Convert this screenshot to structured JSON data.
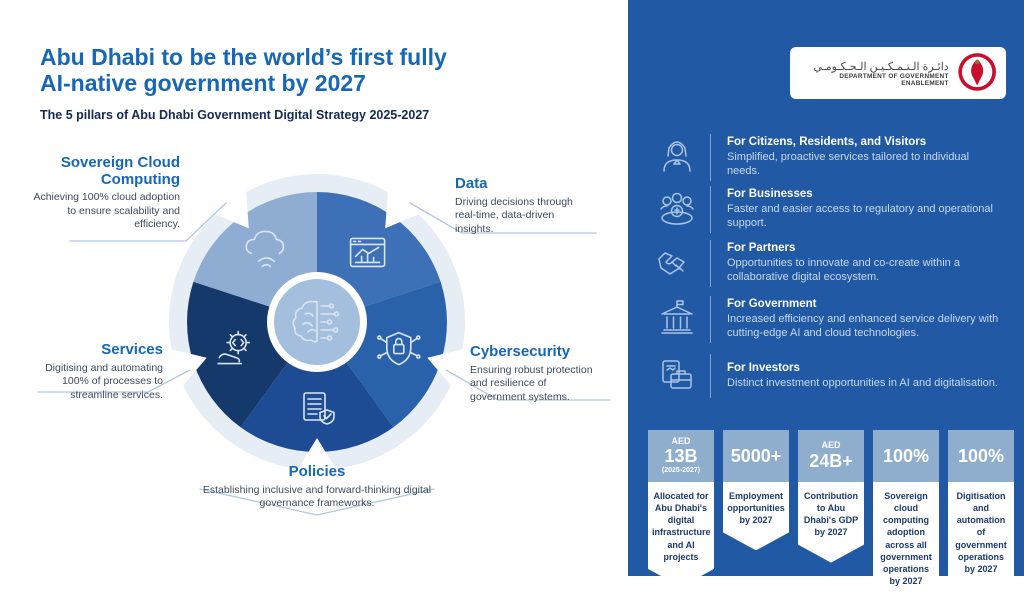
{
  "header": {
    "title_line1": "Abu Dhabi to be the world’s first fully",
    "title_line2": "AI-native government by 2027",
    "subtitle": "The 5 pillars of Abu Dhabi Government Digital Strategy 2025-2027"
  },
  "pillars": [
    {
      "id": "data",
      "name": "Data",
      "description": "Driving decisions through real-time, data-driven insights.",
      "color": "#3D70B6",
      "icon": "analytics-chart-icon"
    },
    {
      "id": "cybersecurity",
      "name": "Cybersecurity",
      "description": "Ensuring robust protection and resilience of government systems.",
      "color": "#2A61AB",
      "icon": "shield-lock-icon"
    },
    {
      "id": "policies",
      "name": "Policies",
      "description": "Establishing inclusive and forward-thinking digital governance frameworks.",
      "color": "#1D4C94",
      "icon": "policy-document-icon"
    },
    {
      "id": "services",
      "name": "Services",
      "description": "Digitising and automating 100% of processes to streamline services.",
      "color": "#16396B",
      "icon": "hand-gear-icon"
    },
    {
      "id": "cloud",
      "name": "Sovereign Cloud Computing",
      "description": "Achieving 100% cloud adoption to ensure scalability and efficiency.",
      "color": "#8FACD2",
      "icon": "cloud-icon"
    }
  ],
  "logo": {
    "arabic": "دائـرة الـتـمـكـيـن الـحـكـومـي",
    "english": "DEPARTMENT OF GOVERNMENT ENABLEMENT"
  },
  "audiences": [
    {
      "title": "For Citizens, Residents, and Visitors",
      "description": "Simplified, proactive services tailored to individual needs.",
      "icon": "citizen-icon"
    },
    {
      "title": "For Businesses",
      "description": "Faster and easier access to regulatory and operational support.",
      "icon": "business-group-icon"
    },
    {
      "title": "For Partners",
      "description": "Opportunities to innovate and co-create within a collaborative digital ecosystem.",
      "icon": "handshake-icon"
    },
    {
      "title": "For Government",
      "description": "Increased efficiency and enhanced service delivery with cutting-edge AI and cloud technologies.",
      "icon": "government-building-icon"
    },
    {
      "title": "For Investors",
      "description": "Distinct investment opportunities in AI and digitalisation.",
      "icon": "briefcase-icon"
    }
  ],
  "stats": [
    {
      "prefix": "AED",
      "value": "13B",
      "suffix": "(2025-2027)",
      "description": "Allocated for Abu Dhabi's digital infrastructure and AI projects"
    },
    {
      "prefix": "",
      "value": "5000+",
      "suffix": "",
      "description": "Employment opportunities by 2027"
    },
    {
      "prefix": "AED",
      "value": "24B+",
      "suffix": "",
      "description": "Contribution to Abu Dhabi's GDP by 2027"
    },
    {
      "prefix": "",
      "value": "100%",
      "suffix": "",
      "description": "Sovereign cloud computing adoption across all government operations by 2027"
    },
    {
      "prefix": "",
      "value": "100%",
      "suffix": "",
      "description": "Digitisation and automation of government operations by 2027"
    }
  ],
  "colors": {
    "panel_blue": "#2159A4",
    "title_blue": "#1767B7",
    "badge_top": "#8FAECE",
    "outer_ring": "#E7EDF4",
    "center_fill": "#A4BFDE",
    "stat_text": "#1C3A6B",
    "emblem_red": "#C8102E"
  }
}
